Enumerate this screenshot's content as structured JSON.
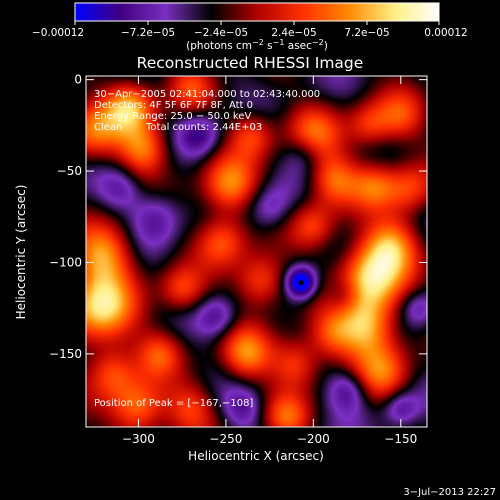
{
  "chart_data": {
    "type": "heatmap",
    "title": "Reconstructed RHESSI Image",
    "xlabel": "Heliocentric X (arcsec)",
    "ylabel": "Heliocentric Y (arcsec)",
    "xlim": [
      -330,
      -135
    ],
    "ylim": [
      -190,
      2
    ],
    "x_ticks": [
      "−300",
      "−250",
      "−200",
      "−150"
    ],
    "y_ticks": [
      "0",
      "−50",
      "−100",
      "−150"
    ],
    "colorbar": {
      "tick_labels": [
        "−0.00012",
        "−7.2e−05",
        "−2.4e−05",
        "2.4e−05",
        "7.2e−05",
        "0.00012"
      ],
      "units_line": "(photons cm",
      "units_exp1": "−2",
      "units_mid": " s",
      "units_exp2": "−1",
      "units_end": " asec",
      "units_exp3": "−2",
      "units_close": ")",
      "colors": [
        "#0000ff",
        "#400080",
        "#7a2fc0",
        "#000000",
        "#b00000",
        "#ff3000",
        "#ff8800",
        "#ffee80",
        "#ffffff"
      ]
    },
    "annotations": {
      "time_range": "30−Apr−2005 02:41:04.000 to 02:43:40.000",
      "detectors": "Detectors: 4F 5F 6F 7F 8F, Att 0",
      "energy": "Energy Range: 25.0 − 50.0 keV",
      "method": "Clean",
      "counts": "Total counts: 2.44E+03",
      "peak": "Position of Peak = [−167,−108]"
    },
    "peak_position": [
      -167,
      -108
    ],
    "minimum_marker": [
      -207,
      -111
    ],
    "blobs": [
      {
        "x": -322,
        "y": -125,
        "v": 1.0,
        "s": 14
      },
      {
        "x": -320,
        "y": -95,
        "v": 0.75,
        "s": 12
      },
      {
        "x": -305,
        "y": -15,
        "v": 0.85,
        "s": 10
      },
      {
        "x": -297,
        "y": -38,
        "v": 0.7,
        "s": 10
      },
      {
        "x": -326,
        "y": -28,
        "v": 0.65,
        "s": 11
      },
      {
        "x": -248,
        "y": -58,
        "v": 0.75,
        "s": 11
      },
      {
        "x": -252,
        "y": -88,
        "v": 0.6,
        "s": 10
      },
      {
        "x": -235,
        "y": -30,
        "v": 0.55,
        "s": 9
      },
      {
        "x": -200,
        "y": -30,
        "v": 0.6,
        "s": 11
      },
      {
        "x": -168,
        "y": -25,
        "v": 0.5,
        "s": 9
      },
      {
        "x": -150,
        "y": -20,
        "v": 0.5,
        "s": 10
      },
      {
        "x": -188,
        "y": -55,
        "v": 0.65,
        "s": 10
      },
      {
        "x": -165,
        "y": -58,
        "v": 0.55,
        "s": 9
      },
      {
        "x": -145,
        "y": -60,
        "v": 0.55,
        "s": 10
      },
      {
        "x": -167,
        "y": -108,
        "v": 1.0,
        "s": 13
      },
      {
        "x": -155,
        "y": -90,
        "v": 0.7,
        "s": 11
      },
      {
        "x": -170,
        "y": -135,
        "v": 0.9,
        "s": 12
      },
      {
        "x": -160,
        "y": -160,
        "v": 0.6,
        "s": 11
      },
      {
        "x": -300,
        "y": -180,
        "v": 0.75,
        "s": 11
      },
      {
        "x": -315,
        "y": -160,
        "v": 0.55,
        "s": 10
      },
      {
        "x": -238,
        "y": -150,
        "v": 0.7,
        "s": 10
      },
      {
        "x": -210,
        "y": -155,
        "v": 0.6,
        "s": 10
      },
      {
        "x": -275,
        "y": -115,
        "v": 0.55,
        "s": 9
      },
      {
        "x": -230,
        "y": -110,
        "v": 0.65,
        "s": 10
      },
      {
        "x": -200,
        "y": -80,
        "v": 0.5,
        "s": 9
      },
      {
        "x": -215,
        "y": -185,
        "v": 0.55,
        "s": 9
      },
      {
        "x": -270,
        "y": -180,
        "v": 0.5,
        "s": 10
      },
      {
        "x": -190,
        "y": -140,
        "v": 0.45,
        "s": 9
      },
      {
        "x": -270,
        "y": -5,
        "v": 0.45,
        "s": 9
      },
      {
        "x": -288,
        "y": -150,
        "v": 0.5,
        "s": 9
      },
      {
        "x": -207,
        "y": -111,
        "v": -0.95,
        "s": 6
      },
      {
        "x": -265,
        "y": -30,
        "v": -0.45,
        "s": 8
      },
      {
        "x": -290,
        "y": -75,
        "v": -0.4,
        "s": 10
      },
      {
        "x": -225,
        "y": -70,
        "v": -0.35,
        "s": 9
      },
      {
        "x": -180,
        "y": -170,
        "v": -0.45,
        "s": 8
      },
      {
        "x": -255,
        "y": -130,
        "v": -0.4,
        "s": 8
      },
      {
        "x": -150,
        "y": -180,
        "v": -0.4,
        "s": 7
      },
      {
        "x": -205,
        "y": -40,
        "v": -0.3,
        "s": 8
      },
      {
        "x": -310,
        "y": -60,
        "v": -0.3,
        "s": 8
      },
      {
        "x": -240,
        "y": -180,
        "v": -0.35,
        "s": 8
      },
      {
        "x": -182,
        "y": -118,
        "v": -0.3,
        "s": 7
      },
      {
        "x": -140,
        "y": -125,
        "v": -0.35,
        "s": 7
      }
    ]
  },
  "footer": {
    "timestamp": "3−Jul−2013 22:27"
  }
}
